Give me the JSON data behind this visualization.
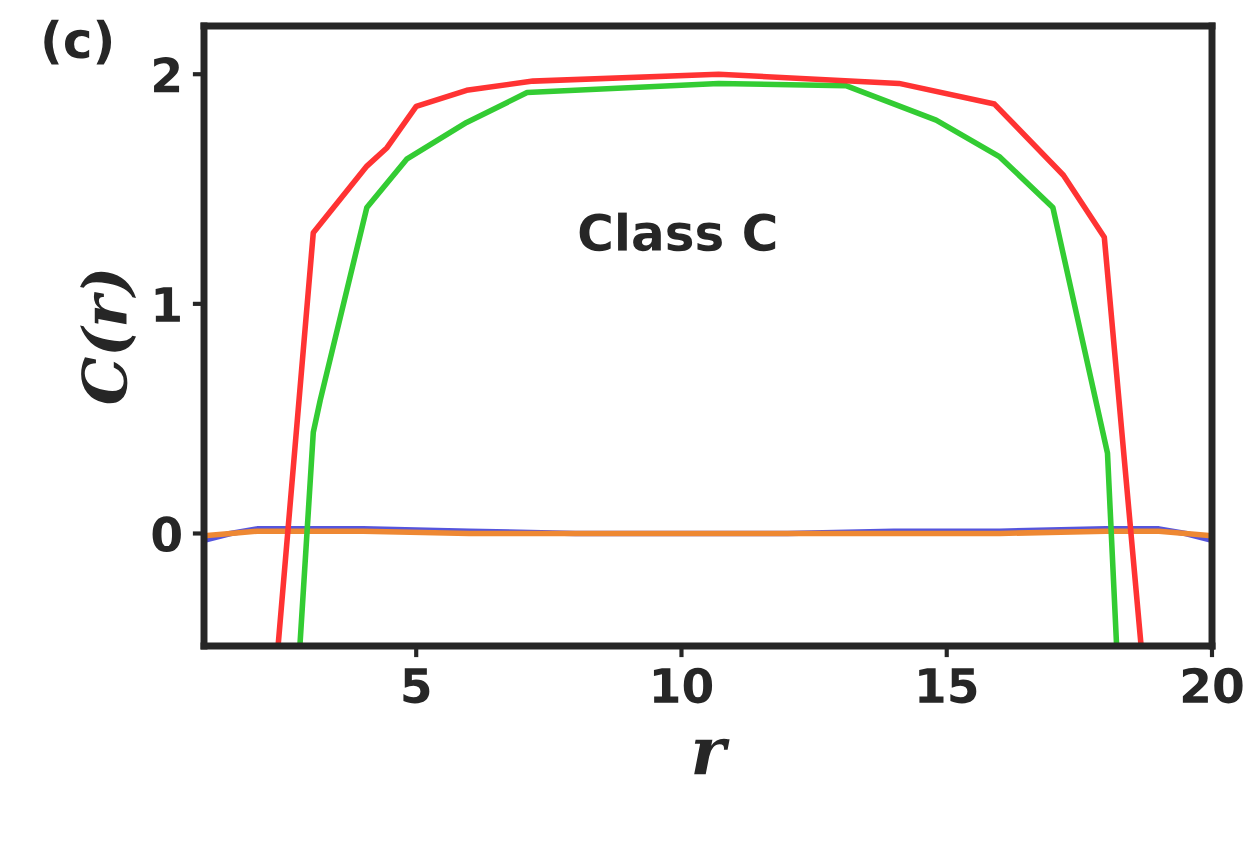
{
  "chart_data": {
    "type": "line",
    "xlabel": "r",
    "ylabel": "C(r)",
    "annotations": [
      "(c)",
      "Class C"
    ],
    "xlim": [
      1,
      20
    ],
    "ylim": [
      -0.49,
      2.21
    ],
    "xticks": [
      5,
      10,
      15,
      20
    ],
    "yticks": [
      0,
      1,
      2
    ],
    "grid": false,
    "legend": false,
    "marker": "none",
    "line_style": "solid",
    "series": [
      {
        "color": "#5555dd",
        "x": [
          1,
          1.5,
          2,
          4,
          6,
          8,
          10,
          12,
          14,
          16,
          18,
          19,
          19.5,
          20
        ],
        "values": [
          -0.03,
          0.0,
          0.02,
          0.02,
          0.01,
          0.0,
          0.0,
          0.0,
          0.01,
          0.01,
          0.02,
          0.02,
          0.0,
          -0.03
        ]
      },
      {
        "color": "#ee8833",
        "x": [
          1,
          1.5,
          2,
          4,
          6,
          8,
          10,
          12,
          14,
          16,
          18,
          19,
          19.5,
          20
        ],
        "values": [
          -0.01,
          0.0,
          0.01,
          0.01,
          0.0,
          0.0,
          0.0,
          0.0,
          0.0,
          0.0,
          0.01,
          0.01,
          0.0,
          -0.01
        ]
      },
      {
        "color": "#33cc33",
        "x": [
          2.81,
          3.06,
          3.19,
          4.07,
          4.82,
          5.95,
          7.09,
          10.7,
          13.1,
          14.8,
          16.0,
          17.0,
          18.03,
          18.2
        ],
        "values": [
          -0.48,
          0.44,
          0.58,
          1.42,
          1.63,
          1.79,
          1.92,
          1.96,
          1.95,
          1.8,
          1.64,
          1.42,
          0.35,
          -0.48
        ]
      },
      {
        "color": "#ff3333",
        "x": [
          2.4,
          3.06,
          4.07,
          4.45,
          5.0,
          5.95,
          7.2,
          10.7,
          14.1,
          15.9,
          17.2,
          17.97,
          18.66
        ],
        "values": [
          -0.48,
          1.31,
          1.6,
          1.68,
          1.86,
          1.93,
          1.97,
          2.0,
          1.96,
          1.87,
          1.56,
          1.29,
          -0.48
        ]
      }
    ]
  }
}
